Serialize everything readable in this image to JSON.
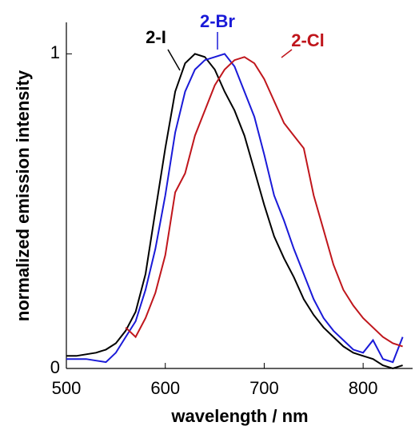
{
  "chart_data": {
    "type": "line",
    "xlabel": "wavelength / nm",
    "ylabel": "normalized emission intensity",
    "x": [
      500,
      510,
      520,
      530,
      540,
      550,
      560,
      570,
      580,
      590,
      600,
      610,
      620,
      630,
      640,
      650,
      660,
      670,
      680,
      690,
      700,
      710,
      720,
      730,
      740,
      750,
      760,
      770,
      780,
      790,
      800,
      810,
      820,
      830,
      840
    ],
    "series": [
      {
        "name": "2-I",
        "color": "#000000",
        "values": [
          0.04,
          0.04,
          0.045,
          0.05,
          0.06,
          0.08,
          0.12,
          0.18,
          0.3,
          0.5,
          0.7,
          0.88,
          0.97,
          1.0,
          0.99,
          0.95,
          0.88,
          0.82,
          0.74,
          0.63,
          0.52,
          0.42,
          0.35,
          0.29,
          0.22,
          0.17,
          0.13,
          0.1,
          0.07,
          0.05,
          0.04,
          0.03,
          0.01,
          0.0,
          0.01
        ]
      },
      {
        "name": "2-Br",
        "color": "#1a1ad8",
        "values": [
          0.03,
          0.03,
          0.03,
          0.025,
          0.02,
          0.05,
          0.1,
          0.15,
          0.25,
          0.38,
          0.55,
          0.75,
          0.88,
          0.95,
          0.98,
          0.99,
          1.0,
          0.96,
          0.88,
          0.8,
          0.68,
          0.55,
          0.47,
          0.38,
          0.3,
          0.22,
          0.16,
          0.12,
          0.09,
          0.06,
          0.05,
          0.09,
          0.03,
          0.02,
          0.1
        ]
      },
      {
        "name": "2-Cl",
        "color": "#c0161c",
        "values": [
          null,
          null,
          null,
          null,
          null,
          null,
          0.13,
          0.1,
          0.16,
          0.24,
          0.36,
          0.56,
          0.62,
          0.74,
          0.82,
          0.9,
          0.95,
          0.98,
          0.99,
          0.97,
          0.92,
          0.85,
          0.78,
          0.74,
          0.7,
          0.55,
          0.44,
          0.33,
          0.25,
          0.2,
          0.16,
          0.13,
          0.1,
          0.08,
          0.07
        ]
      }
    ],
    "xlim": [
      500,
      850
    ],
    "xticks": [
      500,
      600,
      700,
      800
    ],
    "ylim": [
      0,
      1.1
    ],
    "yticks": [
      0,
      1
    ]
  }
}
